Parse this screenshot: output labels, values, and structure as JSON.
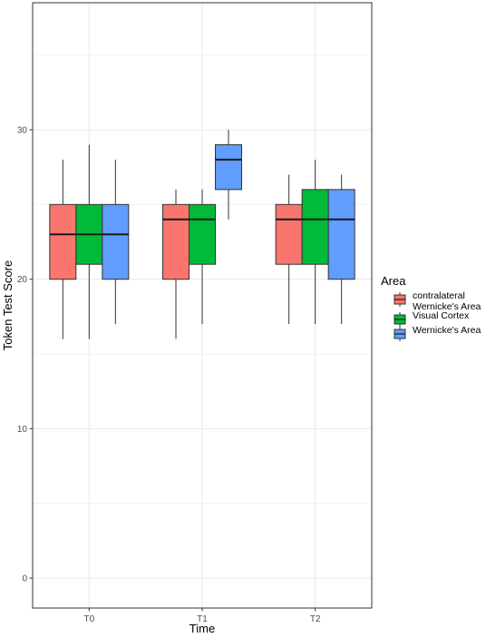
{
  "chart_data": {
    "type": "boxplot",
    "xlabel": "Time",
    "ylabel": "Token Test Score",
    "categories": [
      "T0",
      "T1",
      "T2"
    ],
    "ylim": [
      -2,
      38.5
    ],
    "yticks": [
      0,
      10,
      20,
      30
    ],
    "grid": true,
    "legend": {
      "title": "Area",
      "placement": "right",
      "entries": [
        {
          "label_lines": [
            "contralateral",
            "Wernicke's Area"
          ]
        },
        {
          "label_lines": [
            "Visual Cortex"
          ]
        },
        {
          "label_lines": [
            "Wernicke's Area"
          ]
        }
      ]
    },
    "series": [
      {
        "name": "contralateral Wernicke's Area",
        "color": "#F8766D",
        "boxes": [
          {
            "category": "T0",
            "min": 16,
            "q1": 20,
            "median": 23,
            "q3": 25,
            "max": 28
          },
          {
            "category": "T1",
            "min": 16,
            "q1": 20,
            "median": 24,
            "q3": 25,
            "max": 26
          },
          {
            "category": "T2",
            "min": 17,
            "q1": 21,
            "median": 24,
            "q3": 25,
            "max": 27
          }
        ]
      },
      {
        "name": "Visual Cortex",
        "color": "#00BA38",
        "boxes": [
          {
            "category": "T0",
            "min": 16,
            "q1": 21,
            "median": 23,
            "q3": 25,
            "max": 29
          },
          {
            "category": "T1",
            "min": 17,
            "q1": 21,
            "median": 24,
            "q3": 25,
            "max": 26
          },
          {
            "category": "T2",
            "min": 17,
            "q1": 21,
            "median": 24,
            "q3": 26,
            "max": 28
          }
        ]
      },
      {
        "name": "Wernicke's Area",
        "color": "#619CFF",
        "boxes": [
          {
            "category": "T0",
            "min": 17,
            "q1": 20,
            "median": 23,
            "q3": 25,
            "max": 28
          },
          {
            "category": "T1",
            "min": 24,
            "q1": 26,
            "median": 28,
            "q3": 29,
            "max": 30
          },
          {
            "category": "T2",
            "min": 17,
            "q1": 20,
            "median": 24,
            "q3": 26,
            "max": 27
          }
        ]
      }
    ]
  }
}
